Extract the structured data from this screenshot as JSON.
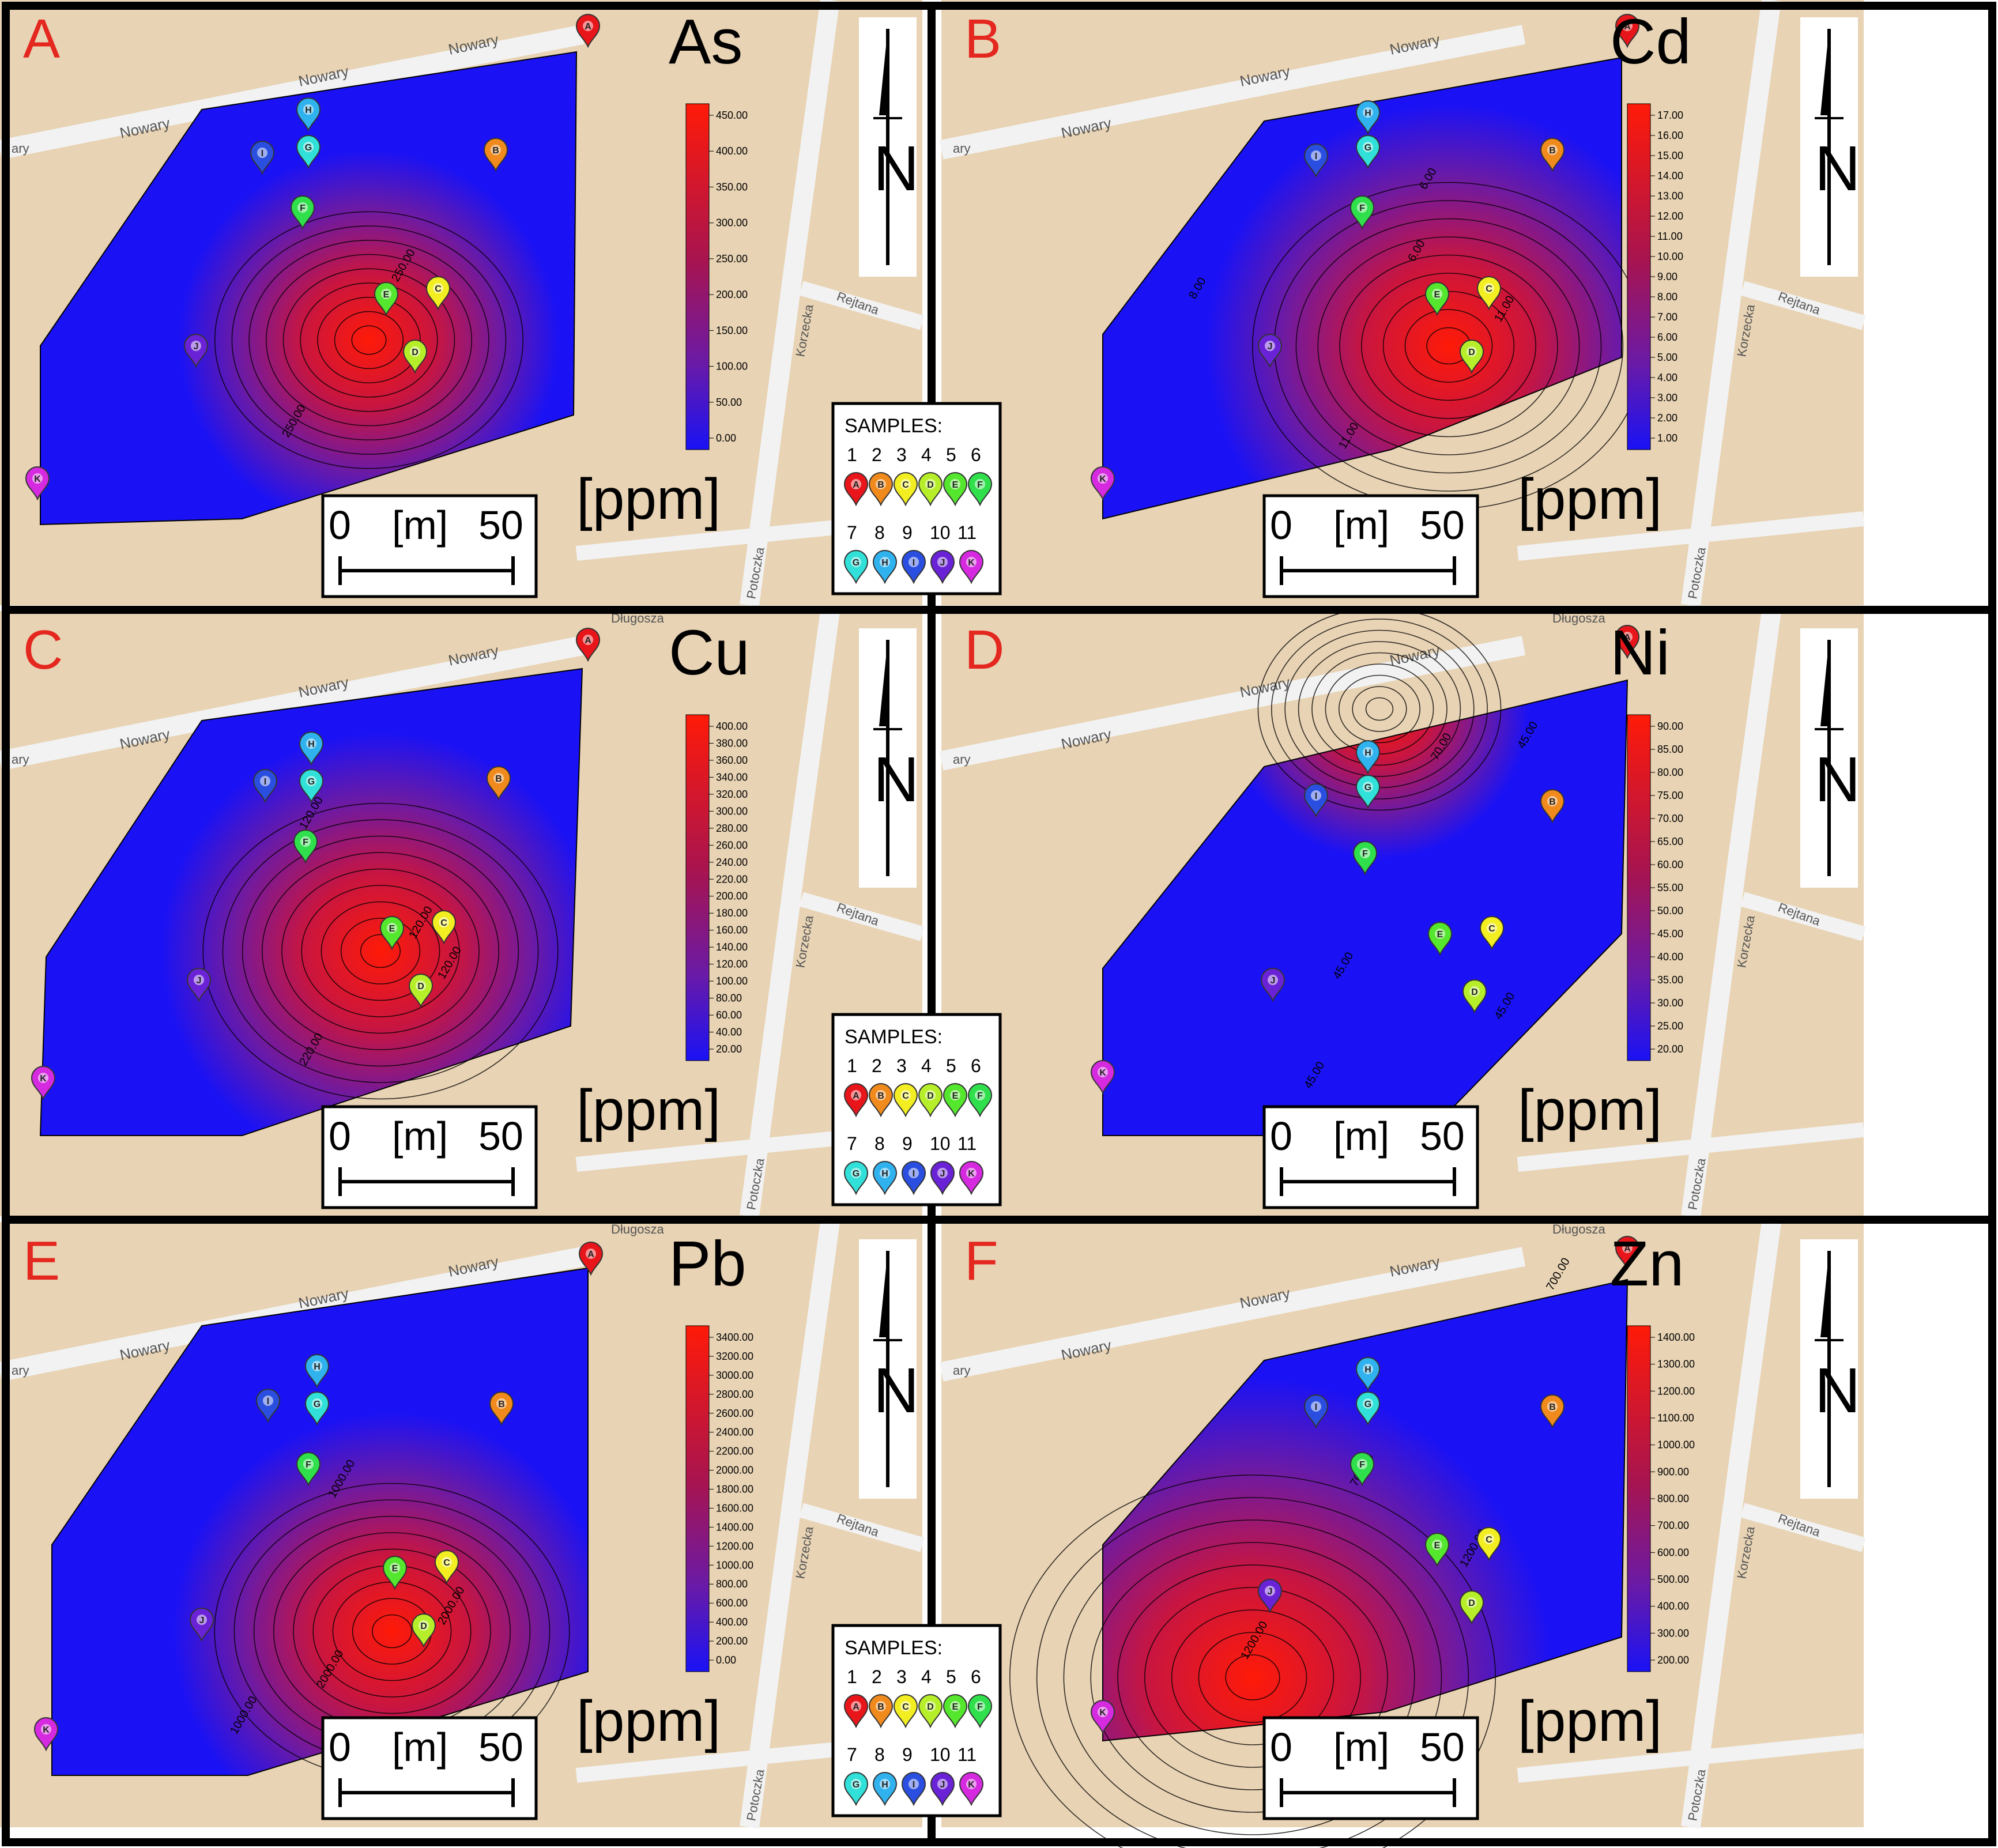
{
  "figure": {
    "unit_label": "[ppm]",
    "scale_bar": {
      "zero": "0",
      "unit": "[m]",
      "max": "50"
    },
    "streets": {
      "nowary": "Nowary",
      "korzecka": "Korzecka",
      "rejtana": "Rejtana",
      "dlugosza": "Długosza",
      "potoczka": "Potoczka",
      "ary": "ary"
    }
  },
  "legend": {
    "title": "SAMPLES:",
    "numbers_row1": [
      "1",
      "2",
      "3",
      "4",
      "5",
      "6"
    ],
    "numbers_row2": [
      "7",
      "8",
      "9",
      "10",
      "11"
    ],
    "samples": [
      {
        "n": "1",
        "letter": "A",
        "color": "#e8151a"
      },
      {
        "n": "2",
        "letter": "B",
        "color": "#f08a1c"
      },
      {
        "n": "3",
        "letter": "C",
        "color": "#f2ee22"
      },
      {
        "n": "4",
        "letter": "D",
        "color": "#b6ef2a"
      },
      {
        "n": "5",
        "letter": "E",
        "color": "#55e62e"
      },
      {
        "n": "6",
        "letter": "F",
        "color": "#2fe04c"
      },
      {
        "n": "7",
        "letter": "G",
        "color": "#31e0d8"
      },
      {
        "n": "8",
        "letter": "H",
        "color": "#2fb2ee"
      },
      {
        "n": "9",
        "letter": "I",
        "color": "#2a4fe0"
      },
      {
        "n": "10",
        "letter": "J",
        "color": "#6a22d6"
      },
      {
        "n": "11",
        "letter": "K",
        "color": "#d62ae0"
      }
    ]
  },
  "panels": [
    {
      "letter": "A",
      "element": "As",
      "scale_ticks": [
        "450.00",
        "400.00",
        "350.00",
        "300.00",
        "250.00",
        "200.00",
        "150.00",
        "100.00",
        "50.00",
        "0.00"
      ],
      "contour_labels": [
        "250.00",
        "250.00"
      ]
    },
    {
      "letter": "B",
      "element": "Cd",
      "scale_ticks": [
        "17.00",
        "16.00",
        "15.00",
        "14.00",
        "13.00",
        "12.00",
        "11.00",
        "10.00",
        "9.00",
        "8.00",
        "7.00",
        "6.00",
        "5.00",
        "4.00",
        "3.00",
        "2.00",
        "1.00"
      ],
      "contour_labels": [
        "6.00",
        "6.00",
        "8.00",
        "11.00",
        "11.00"
      ]
    },
    {
      "letter": "C",
      "element": "Cu",
      "scale_ticks": [
        "400.00",
        "380.00",
        "360.00",
        "340.00",
        "320.00",
        "300.00",
        "280.00",
        "260.00",
        "240.00",
        "220.00",
        "200.00",
        "180.00",
        "160.00",
        "140.00",
        "120.00",
        "100.00",
        "80.00",
        "60.00",
        "40.00",
        "20.00"
      ],
      "contour_labels": [
        "120.00",
        "220.00",
        "120.00",
        "120.00"
      ]
    },
    {
      "letter": "D",
      "element": "Ni",
      "scale_ticks": [
        "90.00",
        "85.00",
        "80.00",
        "75.00",
        "70.00",
        "65.00",
        "60.00",
        "55.00",
        "50.00",
        "45.00",
        "40.00",
        "35.00",
        "30.00",
        "25.00",
        "20.00"
      ],
      "contour_labels": [
        "70.00",
        "45.00",
        "45.00",
        "45.00",
        "45.00"
      ]
    },
    {
      "letter": "E",
      "element": "Pb",
      "scale_ticks": [
        "3400.00",
        "3200.00",
        "3000.00",
        "2800.00",
        "2600.00",
        "2400.00",
        "2200.00",
        "2000.00",
        "1800.00",
        "1600.00",
        "1400.00",
        "1200.00",
        "1000.00",
        "800.00",
        "600.00",
        "400.00",
        "200.00",
        "0.00"
      ],
      "contour_labels": [
        "1000.00",
        "2000.00",
        "2000.00",
        "1000.00"
      ]
    },
    {
      "letter": "F",
      "element": "Zn",
      "scale_ticks": [
        "1400.00",
        "1300.00",
        "1200.00",
        "1100.00",
        "1000.00",
        "900.00",
        "800.00",
        "700.00",
        "600.00",
        "500.00",
        "400.00",
        "300.00",
        "200.00"
      ],
      "contour_labels": [
        "700.00",
        "700.00",
        "1200.00",
        "1200.00"
      ]
    }
  ],
  "colors": {
    "map_bg": "#e8d3b4",
    "road": "#f2f2f2",
    "letter_red": "#e4271f",
    "frame": "#000000",
    "low": "#1a12f5",
    "mid": "#6a1aa6",
    "high": "#ff1a08"
  }
}
